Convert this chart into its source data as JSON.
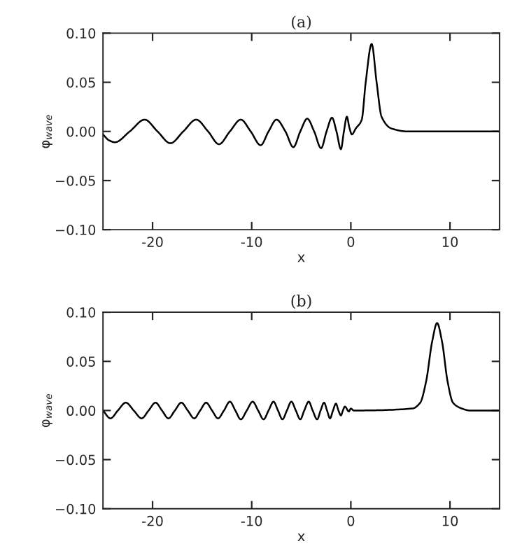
{
  "chart_data": [
    {
      "type": "line",
      "title": "(a)",
      "xlabel": "x",
      "ylabel": "φ$_{wave}$",
      "xlim": [
        -25,
        15
      ],
      "ylim": [
        -0.1,
        0.1
      ],
      "xticks": [
        -20,
        -10,
        0,
        10
      ],
      "yticks": [
        {
          "value": -0.1,
          "label": "−0.10"
        },
        {
          "value": -0.05,
          "label": "−0.05"
        },
        {
          "value": 0,
          "label": "0.00"
        },
        {
          "value": 0.05,
          "label": "0.05"
        },
        {
          "value": 0.1,
          "label": "0.10"
        }
      ],
      "series": [
        {
          "color": "#000000",
          "x": [
            -25,
            -24.4,
            -23.8,
            -22.3,
            -20.8,
            -19.5,
            -18.2,
            -16.9,
            -15.6,
            -14.4,
            -13.3,
            -12.2,
            -11.1,
            -10.1,
            -9.1,
            -8.3,
            -7.5,
            -6.6,
            -5.8,
            -5.1,
            -4.4,
            -3.7,
            -3.0,
            -2.45,
            -1.9,
            -1.45,
            -1.0,
            -0.7,
            -0.4,
            -0.15,
            0.1,
            0.5,
            1.1,
            1.5,
            2.1,
            2.6,
            3.1,
            4.1,
            5.75,
            15
          ],
          "values": [
            -0.003,
            -0.009,
            -0.011,
            0,
            0.012,
            0,
            -0.012,
            0,
            0.012,
            0,
            -0.013,
            0,
            0.012,
            0,
            -0.014,
            0,
            0.012,
            0,
            -0.016,
            0,
            0.013,
            0,
            -0.017,
            0,
            0.014,
            0,
            -0.018,
            0,
            0.015,
            0.004,
            -0.003,
            0.003,
            0.012,
            0.05,
            0.089,
            0.05,
            0.015,
            0.003,
            0,
            0
          ]
        }
      ]
    },
    {
      "type": "line",
      "title": "(b)",
      "xlabel": "x",
      "ylabel": "φ$_{wave}$",
      "xlim": [
        -25,
        15
      ],
      "ylim": [
        -0.1,
        0.1
      ],
      "xticks": [
        -20,
        -10,
        0,
        10
      ],
      "yticks": [
        {
          "value": -0.1,
          "label": "−0.10"
        },
        {
          "value": -0.05,
          "label": "−0.05"
        },
        {
          "value": 0,
          "label": "0.00"
        },
        {
          "value": 0.05,
          "label": "0.05"
        },
        {
          "value": 0.1,
          "label": "0.10"
        }
      ],
      "series": [
        {
          "color": "#000000",
          "x": [
            -25,
            -24.25,
            -23.5,
            -22.7,
            -21.9,
            -21.1,
            -20.4,
            -19.7,
            -19.05,
            -18.4,
            -17.75,
            -17.1,
            -16.45,
            -15.8,
            -15.2,
            -14.6,
            -14.0,
            -13.4,
            -12.8,
            -12.2,
            -11.65,
            -11.1,
            -10.5,
            -9.9,
            -9.35,
            -8.8,
            -8.3,
            -7.8,
            -7.35,
            -6.9,
            -6.45,
            -6.0,
            -5.55,
            -5.1,
            -4.7,
            -4.25,
            -3.85,
            -3.4,
            -3.05,
            -2.7,
            -2.4,
            -2.1,
            -1.8,
            -1.5,
            -1.25,
            -1.0,
            -0.8,
            -0.6,
            -0.2,
            0,
            0.3,
            6.2,
            7.0,
            7.6,
            8.2,
            8.7,
            9.2,
            9.75,
            10.3,
            11.2,
            12,
            15
          ],
          "values": [
            0,
            -0.008,
            0,
            0.008,
            0,
            -0.008,
            0,
            0.008,
            0,
            -0.008,
            0,
            0.008,
            0,
            -0.008,
            0,
            0.008,
            0,
            -0.008,
            0,
            0.009,
            0,
            -0.009,
            0,
            0.009,
            0,
            -0.009,
            0,
            0.009,
            0,
            -0.009,
            0,
            0.009,
            0,
            -0.009,
            0,
            0.009,
            0,
            -0.009,
            0,
            0.008,
            0,
            -0.008,
            0,
            0.007,
            0,
            -0.005,
            0,
            0.004,
            -0.001,
            0.002,
            0,
            0.002,
            0.008,
            0.03,
            0.07,
            0.089,
            0.07,
            0.03,
            0.008,
            0.002,
            0,
            0
          ]
        }
      ]
    }
  ]
}
